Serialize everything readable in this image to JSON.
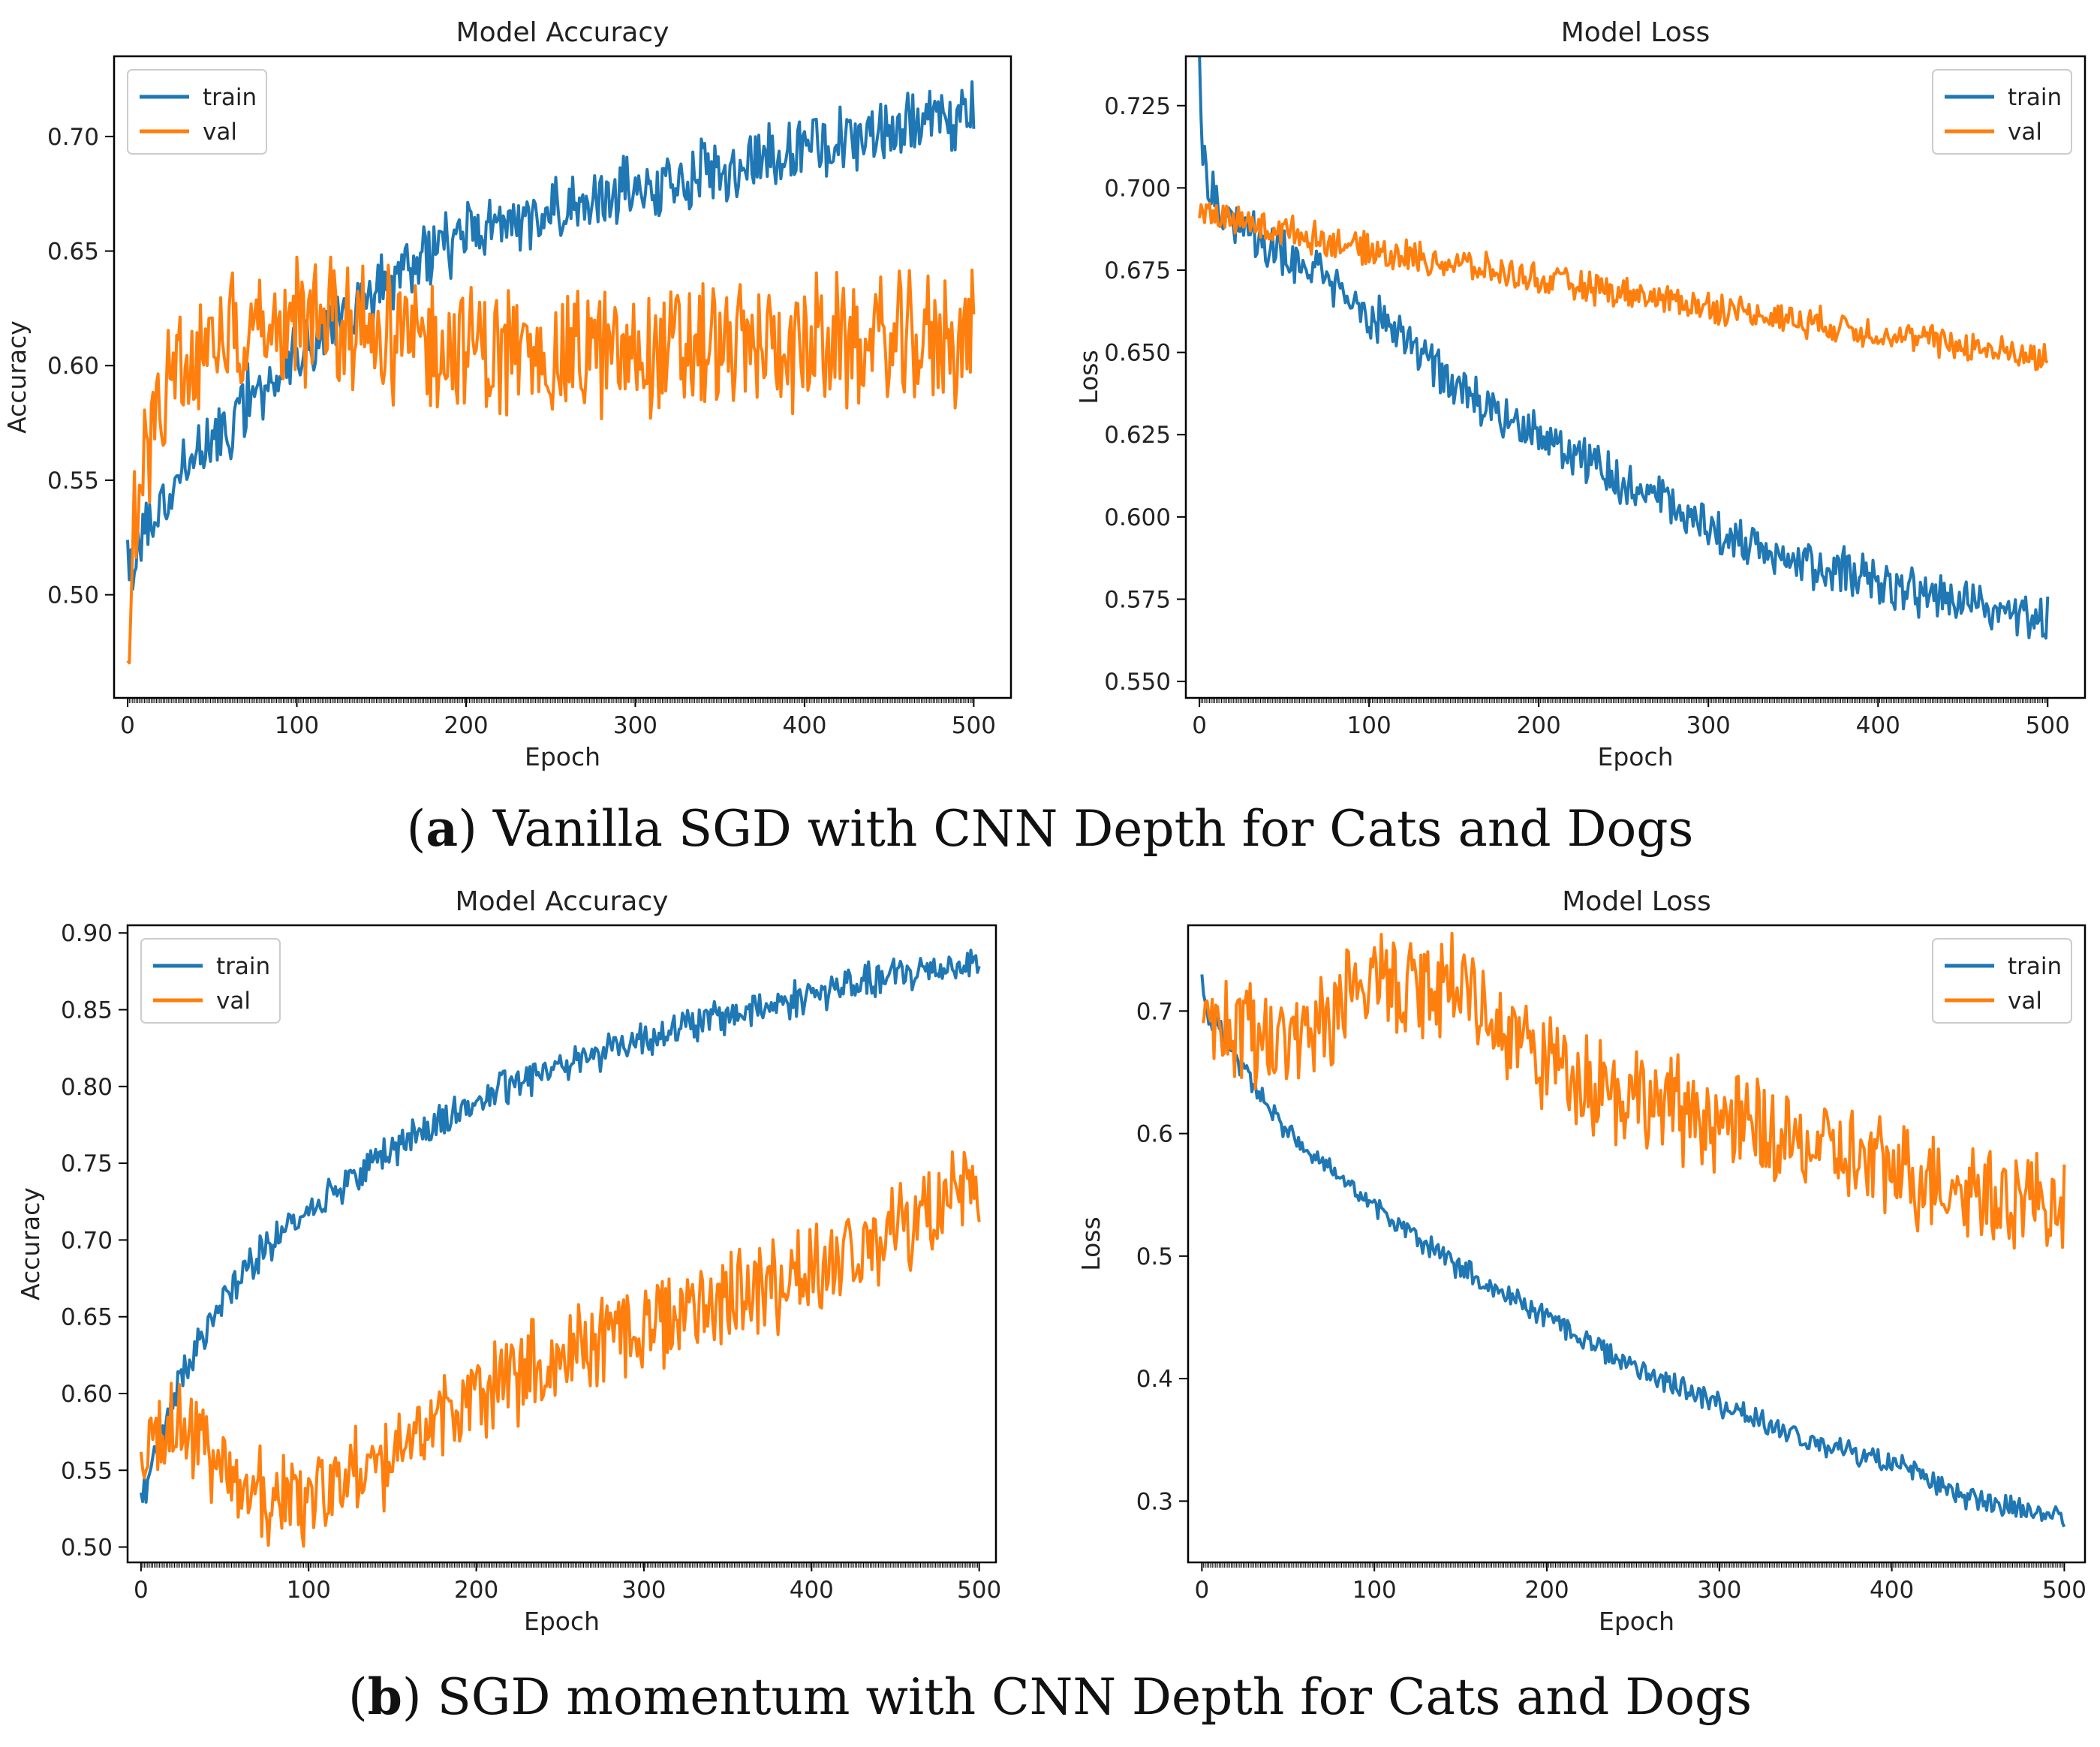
{
  "colors": {
    "train": "#1f77b4",
    "val": "#ff7f0e",
    "axis": "#000000",
    "text": "#222222"
  },
  "captions": {
    "a": {
      "letter": "a",
      "text": "Vanilla SGD with CNN Depth for Cats and Dogs"
    },
    "b": {
      "letter": "b",
      "text": "SGD momentum with CNN Depth for Cats and Dogs"
    }
  },
  "chart_data": [
    {
      "id": "a-accuracy",
      "type": "line",
      "title": "Model Accuracy",
      "xlabel": "Epoch",
      "ylabel": "Accuracy",
      "xlim": [
        -8,
        522
      ],
      "ylim": [
        0.455,
        0.735
      ],
      "xticks": [
        0,
        100,
        200,
        300,
        400,
        500
      ],
      "yticks": [
        0.5,
        0.55,
        0.6,
        0.65,
        0.7
      ],
      "ytick_labels": [
        "0.50",
        "0.55",
        "0.60",
        "0.65",
        "0.70"
      ],
      "legend": [
        "train",
        "val"
      ],
      "legend_loc": "upper-left",
      "x": [
        0,
        5,
        10,
        20,
        30,
        40,
        50,
        60,
        75,
        100,
        125,
        150,
        175,
        200,
        250,
        300,
        350,
        400,
        450,
        500
      ],
      "series": [
        {
          "name": "train",
          "noise": 0.012,
          "seed": 11,
          "values": [
            0.51,
            0.52,
            0.53,
            0.54,
            0.55,
            0.56,
            0.568,
            0.575,
            0.588,
            0.605,
            0.62,
            0.635,
            0.648,
            0.657,
            0.667,
            0.677,
            0.687,
            0.696,
            0.703,
            0.708
          ]
        },
        {
          "name": "val",
          "noise": 0.024,
          "seed": 23,
          "values": [
            0.475,
            0.54,
            0.56,
            0.585,
            0.598,
            0.605,
            0.612,
            0.615,
            0.618,
            0.62,
            0.618,
            0.614,
            0.61,
            0.607,
            0.605,
            0.606,
            0.608,
            0.609,
            0.61,
            0.612
          ]
        }
      ]
    },
    {
      "id": "a-loss",
      "type": "line",
      "title": "Model Loss",
      "xlabel": "Epoch",
      "ylabel": "Loss",
      "xlim": [
        -8,
        522
      ],
      "ylim": [
        0.545,
        0.74
      ],
      "xticks": [
        0,
        100,
        200,
        300,
        400,
        500
      ],
      "yticks": [
        0.55,
        0.575,
        0.6,
        0.625,
        0.65,
        0.675,
        0.7,
        0.725
      ],
      "ytick_labels": [
        "0.550",
        "0.575",
        "0.600",
        "0.625",
        "0.650",
        "0.675",
        "0.700",
        "0.725"
      ],
      "legend": [
        "train",
        "val"
      ],
      "legend_loc": "upper-right",
      "x": [
        0,
        2,
        5,
        10,
        20,
        50,
        100,
        150,
        200,
        250,
        300,
        350,
        400,
        450,
        500
      ],
      "series": [
        {
          "name": "train",
          "noise": 0.006,
          "seed": 31,
          "values": [
            0.735,
            0.712,
            0.703,
            0.695,
            0.69,
            0.68,
            0.662,
            0.64,
            0.625,
            0.61,
            0.597,
            0.587,
            0.58,
            0.574,
            0.568
          ]
        },
        {
          "name": "val",
          "noise": 0.004,
          "seed": 47,
          "values": [
            0.694,
            0.693,
            0.692,
            0.691,
            0.69,
            0.687,
            0.681,
            0.677,
            0.672,
            0.668,
            0.664,
            0.66,
            0.656,
            0.652,
            0.648
          ]
        }
      ]
    },
    {
      "id": "b-accuracy",
      "type": "line",
      "title": "Model Accuracy",
      "xlabel": "Epoch",
      "ylabel": "Accuracy",
      "xlim": [
        -8,
        510
      ],
      "ylim": [
        0.49,
        0.905
      ],
      "xticks": [
        0,
        100,
        200,
        300,
        400,
        500
      ],
      "yticks": [
        0.5,
        0.55,
        0.6,
        0.65,
        0.7,
        0.75,
        0.8,
        0.85,
        0.9
      ],
      "ytick_labels": [
        "0.50",
        "0.55",
        "0.60",
        "0.65",
        "0.70",
        "0.75",
        "0.80",
        "0.85",
        "0.90"
      ],
      "legend": [
        "train",
        "val"
      ],
      "legend_loc": "upper-left",
      "x": [
        0,
        10,
        20,
        30,
        50,
        75,
        100,
        150,
        200,
        250,
        300,
        350,
        400,
        450,
        500
      ],
      "series": [
        {
          "name": "train",
          "noise": 0.01,
          "seed": 53,
          "values": [
            0.53,
            0.565,
            0.6,
            0.625,
            0.665,
            0.695,
            0.72,
            0.76,
            0.79,
            0.815,
            0.832,
            0.846,
            0.86,
            0.872,
            0.882
          ]
        },
        {
          "name": "val",
          "noise": 0.026,
          "seed": 61,
          "values": [
            0.55,
            0.585,
            0.58,
            0.57,
            0.545,
            0.53,
            0.53,
            0.56,
            0.6,
            0.625,
            0.645,
            0.665,
            0.68,
            0.705,
            0.73
          ]
        }
      ]
    },
    {
      "id": "b-loss",
      "type": "line",
      "title": "Model Loss",
      "xlabel": "Epoch",
      "ylabel": "Loss",
      "xlim": [
        -8,
        512
      ],
      "ylim": [
        0.25,
        0.77
      ],
      "xticks": [
        0,
        100,
        200,
        300,
        400,
        500
      ],
      "yticks": [
        0.3,
        0.4,
        0.5,
        0.6,
        0.7
      ],
      "ytick_labels": [
        "0.3",
        "0.4",
        "0.5",
        "0.6",
        "0.7"
      ],
      "legend": [
        "train",
        "val"
      ],
      "legend_loc": "upper-right",
      "x": [
        0,
        2,
        10,
        25,
        50,
        75,
        100,
        150,
        200,
        250,
        300,
        350,
        400,
        450,
        500
      ],
      "series": [
        {
          "name": "train",
          "noise": 0.008,
          "seed": 71,
          "values": [
            0.735,
            0.7,
            0.685,
            0.65,
            0.6,
            0.57,
            0.54,
            0.49,
            0.45,
            0.41,
            0.38,
            0.35,
            0.33,
            0.3,
            0.285
          ]
        },
        {
          "name": "val",
          "noise": 0.035,
          "seed": 83,
          "values": [
            0.69,
            0.692,
            0.688,
            0.68,
            0.672,
            0.695,
            0.725,
            0.715,
            0.66,
            0.63,
            0.61,
            0.59,
            0.57,
            0.555,
            0.54
          ]
        }
      ]
    }
  ]
}
